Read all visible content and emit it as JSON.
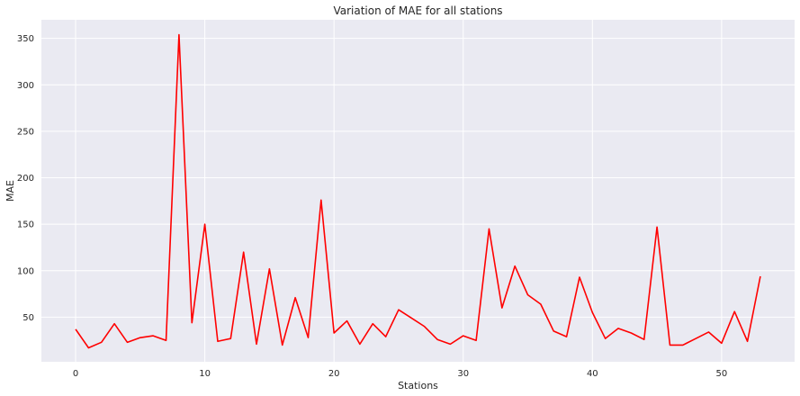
{
  "chart_data": {
    "type": "line",
    "title": "Variation of MAE for all stations",
    "xlabel": "Stations",
    "ylabel": "MAE",
    "xlim": [
      -2.65,
      55.65
    ],
    "ylim": [
      2,
      370
    ],
    "xticks": [
      0,
      10,
      20,
      30,
      40,
      50
    ],
    "yticks": [
      50,
      100,
      150,
      200,
      250,
      300,
      350
    ],
    "grid": true,
    "background_color": "#eaeaf2",
    "series": [
      {
        "color": "#ff0000",
        "x": [
          0,
          1,
          2,
          3,
          4,
          5,
          6,
          7,
          8,
          9,
          10,
          11,
          12,
          13,
          14,
          15,
          16,
          17,
          18,
          19,
          20,
          21,
          22,
          23,
          24,
          25,
          26,
          27,
          28,
          29,
          30,
          31,
          32,
          33,
          34,
          35,
          36,
          37,
          38,
          39,
          40,
          41,
          42,
          43,
          44,
          45,
          46,
          47,
          48,
          49,
          50,
          51,
          52,
          53
        ],
        "values": [
          37,
          17,
          23,
          43,
          23,
          28,
          30,
          25,
          354,
          44,
          150,
          24,
          27,
          120,
          21,
          102,
          20,
          71,
          28,
          176,
          33,
          46,
          21,
          43,
          29,
          58,
          49,
          40,
          26,
          21,
          30,
          25,
          145,
          60,
          105,
          74,
          64,
          35,
          29,
          93,
          55,
          27,
          38,
          33,
          26,
          147,
          20,
          20,
          27,
          34,
          22,
          56,
          24,
          94
        ]
      }
    ]
  }
}
